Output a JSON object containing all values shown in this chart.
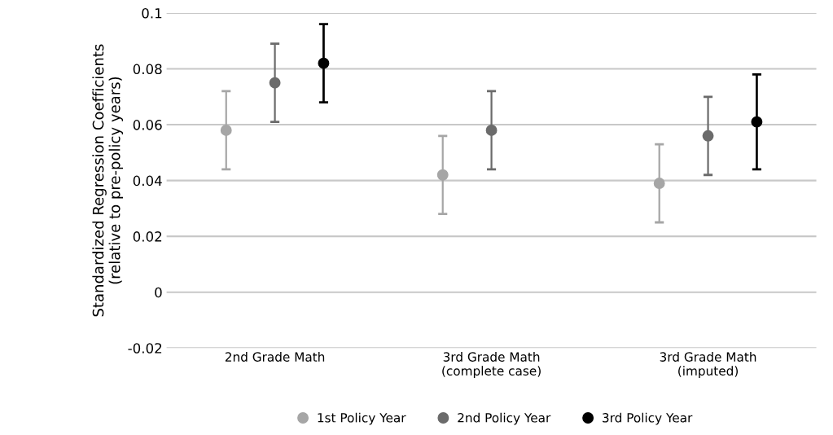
{
  "chart_data": {
    "type": "scatter",
    "ylabel": "Standardized Regression Coefficients\n(relative to pre-policy years)",
    "categories": [
      "2nd Grade Math",
      "3rd Grade Math\n(complete case)",
      "3rd Grade Math\n(imputed)"
    ],
    "series": [
      {
        "name": "1st Policy Year",
        "color": "#a6a6a6",
        "values": [
          0.058,
          0.042,
          0.039
        ],
        "errors": [
          0.014,
          0.014,
          0.014
        ]
      },
      {
        "name": "2nd Policy Year",
        "color": "#6b6b6b",
        "values": [
          0.075,
          0.058,
          0.056
        ],
        "errors": [
          0.014,
          0.014,
          0.014
        ]
      },
      {
        "name": "3rd Policy Year",
        "color": "#000000",
        "values": [
          0.082,
          null,
          0.061
        ],
        "errors": [
          0.014,
          null,
          0.017
        ]
      }
    ],
    "ylim": [
      -0.02,
      0.1
    ],
    "yticks": [
      -0.02,
      0,
      0.02,
      0.04,
      0.06,
      0.08,
      0.1
    ],
    "grid": "y",
    "legend": "bottom",
    "marker": "circle"
  }
}
